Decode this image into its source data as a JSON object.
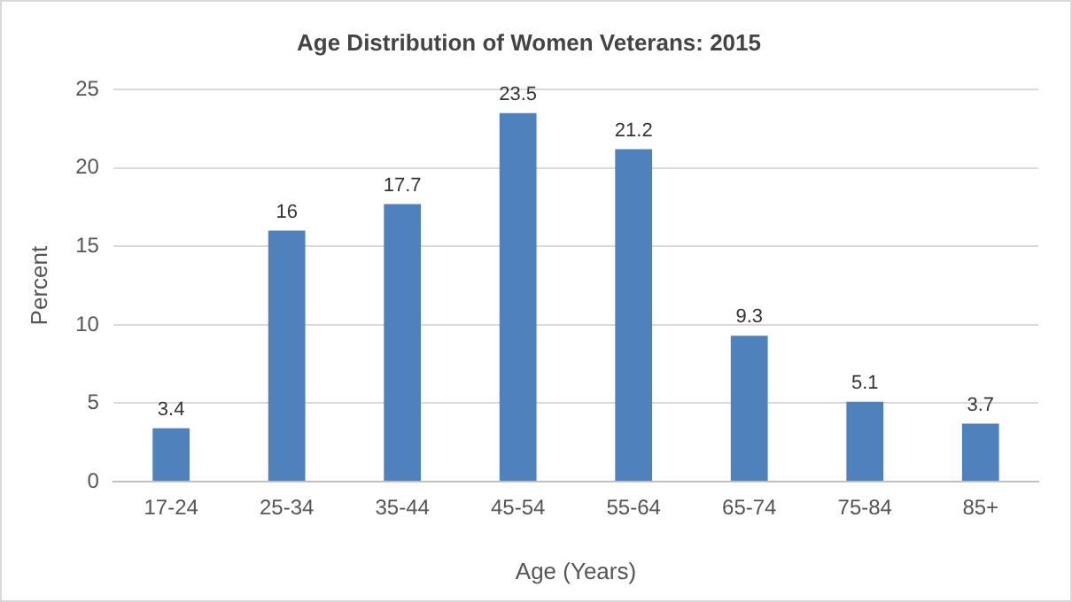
{
  "chart_data": {
    "type": "bar",
    "title": "Age Distribution of Women Veterans: 2015",
    "xlabel": "Age (Years)",
    "ylabel": "Percent",
    "categories": [
      "17-24",
      "25-34",
      "35-44",
      "45-54",
      "55-64",
      "65-74",
      "75-84",
      "85+"
    ],
    "values": [
      3.4,
      16,
      17.7,
      23.5,
      21.2,
      9.3,
      5.1,
      3.7
    ],
    "color": "#4f81bd",
    "ylim": [
      0,
      25
    ],
    "yticks": [
      0,
      5,
      10,
      15,
      20,
      25
    ],
    "grid": "y",
    "data_labels": true,
    "legend": false
  }
}
